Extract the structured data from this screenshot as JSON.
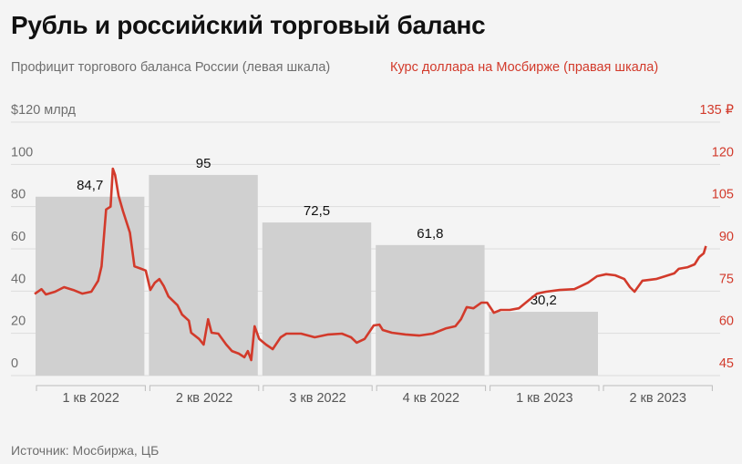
{
  "chart_data": {
    "type": "bar+line",
    "title": "Рубль и российский торговый баланс",
    "legend": {
      "left_series": "Профицит торгового баланса России (левая шкала)",
      "right_series": "Курс доллара на Мосбирже (правая шкала)"
    },
    "categories": [
      "1 кв 2022",
      "2 кв 2022",
      "3 кв 2022",
      "4 кв 2022",
      "1 кв 2023",
      "2 кв 2023"
    ],
    "bars": {
      "name": "Профицит торгового баланса России",
      "values": [
        84.7,
        95,
        72.5,
        61.8,
        30.2,
        null
      ],
      "labels": [
        "84,7",
        "95",
        "72,5",
        "61,8",
        "30,2",
        ""
      ],
      "color": "#d0d0d0"
    },
    "left_axis": {
      "ylim": [
        0,
        120
      ],
      "ticks": [
        "0",
        "20",
        "40",
        "60",
        "80",
        "100",
        "$120 млрд"
      ],
      "values": [
        0,
        20,
        40,
        60,
        80,
        100,
        120
      ]
    },
    "right_axis": {
      "ylim": [
        45,
        135
      ],
      "ticks": [
        "45",
        "60",
        "75",
        "90",
        "105",
        "120",
        "135 ₽"
      ],
      "values": [
        45,
        60,
        75,
        90,
        105,
        120,
        135
      ]
    },
    "line": {
      "name": "Курс доллара на Мосбирже",
      "color": "#d23a2b",
      "x_unit": "quarters since 1 Jan 2022",
      "points": [
        [
          0,
          74.0
        ],
        [
          0.06,
          75.7
        ],
        [
          0.1,
          73.8
        ],
        [
          0.18,
          74.8
        ],
        [
          0.26,
          76.4
        ],
        [
          0.34,
          75.4
        ],
        [
          0.42,
          74.1
        ],
        [
          0.5,
          74.8
        ],
        [
          0.56,
          78.7
        ],
        [
          0.59,
          83.8
        ],
        [
          0.63,
          104
        ],
        [
          0.67,
          105
        ],
        [
          0.69,
          118.5
        ],
        [
          0.71,
          116.2
        ],
        [
          0.74,
          108.8
        ],
        [
          0.78,
          103.3
        ],
        [
          0.84,
          95.8
        ],
        [
          0.88,
          83.8
        ],
        [
          0.94,
          82.9
        ],
        [
          0.98,
          82.3
        ],
        [
          1.02,
          75.4
        ],
        [
          1.06,
          78
        ],
        [
          1.1,
          79.3
        ],
        [
          1.14,
          76.7
        ],
        [
          1.18,
          73.1
        ],
        [
          1.26,
          70
        ],
        [
          1.3,
          66.7
        ],
        [
          1.36,
          64.5
        ],
        [
          1.38,
          60.2
        ],
        [
          1.45,
          58
        ],
        [
          1.49,
          56
        ],
        [
          1.53,
          65
        ],
        [
          1.56,
          60.2
        ],
        [
          1.62,
          59.9
        ],
        [
          1.69,
          56
        ],
        [
          1.74,
          53.7
        ],
        [
          1.8,
          52.8
        ],
        [
          1.85,
          51.5
        ],
        [
          1.88,
          53.7
        ],
        [
          1.91,
          50.5
        ],
        [
          1.94,
          62.5
        ],
        [
          1.98,
          58
        ],
        [
          2.04,
          56
        ],
        [
          2.1,
          54.4
        ],
        [
          2.17,
          58.6
        ],
        [
          2.22,
          59.9
        ],
        [
          2.35,
          59.9
        ],
        [
          2.47,
          58.6
        ],
        [
          2.59,
          59.6
        ],
        [
          2.71,
          59.9
        ],
        [
          2.79,
          58.6
        ],
        [
          2.84,
          56.7
        ],
        [
          2.91,
          58
        ],
        [
          2.99,
          62.8
        ],
        [
          3.04,
          63.1
        ],
        [
          3.07,
          61.2
        ],
        [
          3.15,
          60.2
        ],
        [
          3.27,
          59.6
        ],
        [
          3.39,
          59.2
        ],
        [
          3.51,
          59.9
        ],
        [
          3.63,
          61.8
        ],
        [
          3.71,
          62.5
        ],
        [
          3.76,
          65
        ],
        [
          3.81,
          69.3
        ],
        [
          3.87,
          68.9
        ],
        [
          3.94,
          70.9
        ],
        [
          3.99,
          70.9
        ],
        [
          4.05,
          67.3
        ],
        [
          4.11,
          68.3
        ],
        [
          4.19,
          68.3
        ],
        [
          4.27,
          68.9
        ],
        [
          4.35,
          71.5
        ],
        [
          4.43,
          74.1
        ],
        [
          4.51,
          74.8
        ],
        [
          4.63,
          75.4
        ],
        [
          4.76,
          75.7
        ],
        [
          4.88,
          78
        ],
        [
          4.96,
          80.3
        ],
        [
          5.04,
          81
        ],
        [
          5.12,
          80.6
        ],
        [
          5.2,
          79.3
        ],
        [
          5.25,
          76.4
        ],
        [
          5.29,
          74.8
        ],
        [
          5.36,
          78.7
        ],
        [
          5.48,
          79.3
        ],
        [
          5.56,
          80.3
        ],
        [
          5.64,
          81.3
        ],
        [
          5.68,
          82.9
        ],
        [
          5.76,
          83.5
        ],
        [
          5.82,
          84.5
        ],
        [
          5.86,
          87.1
        ],
        [
          5.9,
          88.4
        ],
        [
          5.92,
          91
        ]
      ]
    },
    "grid": true,
    "source": "Источник: Мосбиржа, ЦБ",
    "colors": {
      "left_axis": "#6e6e6e",
      "right_axis": "#d23a2b",
      "grid": "#dcdcdc",
      "background": "#f4f4f4"
    }
  }
}
